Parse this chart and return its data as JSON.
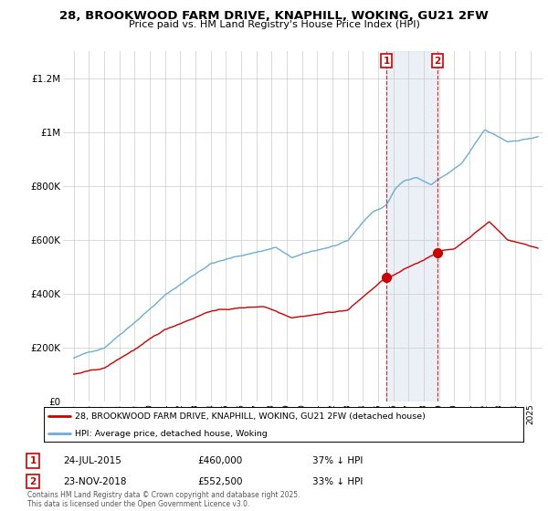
{
  "title_line1": "28, BROOKWOOD FARM DRIVE, KNAPHILL, WOKING, GU21 2FW",
  "title_line2": "Price paid vs. HM Land Registry's House Price Index (HPI)",
  "ylim": [
    0,
    1300000
  ],
  "yticks": [
    0,
    200000,
    400000,
    600000,
    800000,
    1000000,
    1200000
  ],
  "ytick_labels": [
    "£0",
    "£200K",
    "£400K",
    "£600K",
    "£800K",
    "£1M",
    "£1.2M"
  ],
  "hpi_color": "#6baed6",
  "price_color": "#cc0000",
  "marker1_date": 2015.55,
  "marker1_price": 460000,
  "marker1_hpi": 730000,
  "marker1_text": "24-JUL-2015",
  "marker1_pct": "37% ↓ HPI",
  "marker2_date": 2018.9,
  "marker2_price": 552500,
  "marker2_hpi": 820000,
  "marker2_text": "23-NOV-2018",
  "marker2_pct": "33% ↓ HPI",
  "legend_label1": "28, BROOKWOOD FARM DRIVE, KNAPHILL, WOKING, GU21 2FW (detached house)",
  "legend_label2": "HPI: Average price, detached house, Woking",
  "footer": "Contains HM Land Registry data © Crown copyright and database right 2025.\nThis data is licensed under the Open Government Licence v3.0.",
  "background_color": "#ffffff",
  "shade_color": "#dce6f1",
  "xlim_left": 1994.3,
  "xlim_right": 2025.8
}
